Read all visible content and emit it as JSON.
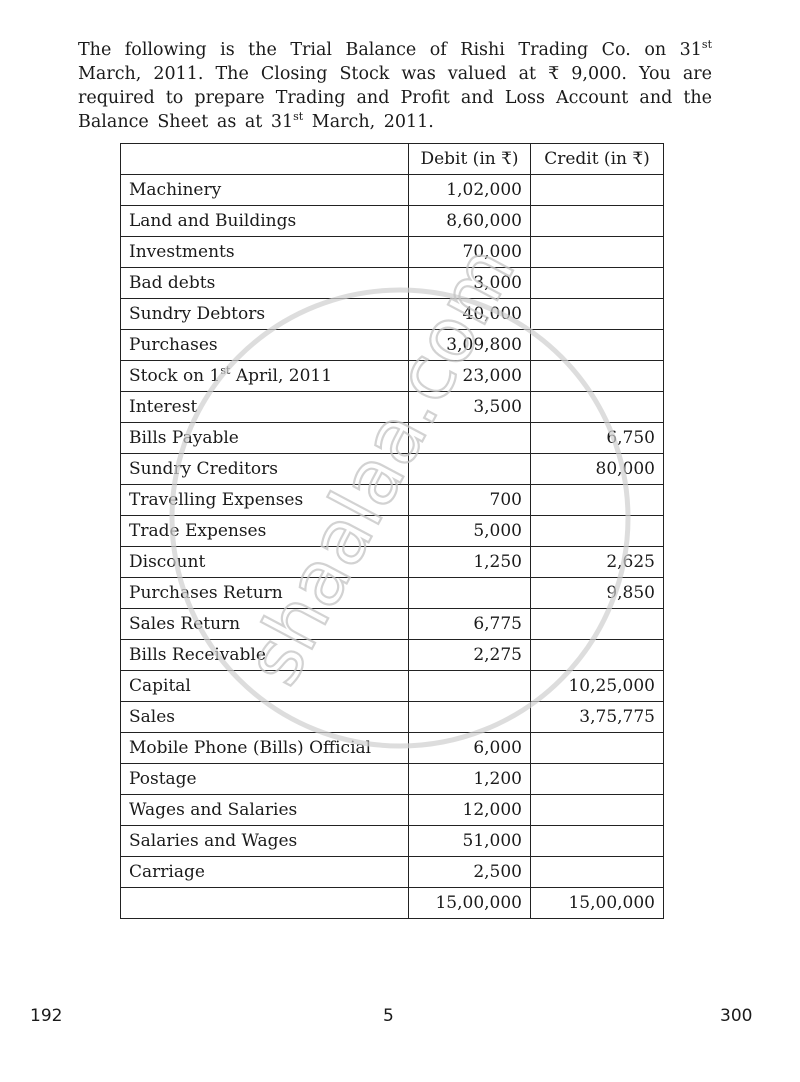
{
  "question": {
    "p1": "The following is the Trial Balance of Rishi Trading Co. on 31",
    "sup1": "st",
    "p2": " March, 2011. The Closing Stock was valued at ₹ 9,000. You are required to prepare Trading and Profit and Loss Account and the Balance Sheet as at 31",
    "sup2": "st",
    "p3": " March, 2011."
  },
  "table": {
    "headers": [
      "",
      "Debit (in ₹)",
      "Credit (in ₹)"
    ],
    "rows": [
      {
        "name": "Machinery",
        "debit": "1,02,000",
        "credit": ""
      },
      {
        "name": "Land and Buildings",
        "debit": "8,60,000",
        "credit": ""
      },
      {
        "name": "Investments",
        "debit": "70,000",
        "credit": ""
      },
      {
        "name": "Bad debts",
        "debit": "3,000",
        "credit": ""
      },
      {
        "name": "Sundry Debtors",
        "debit": "40,000",
        "credit": ""
      },
      {
        "name": "Purchases",
        "debit": "3,09,800",
        "credit": ""
      },
      {
        "name": "Stock on 1",
        "sup": "st",
        "name_rest": " April, 2011",
        "debit": "23,000",
        "credit": ""
      },
      {
        "name": "Interest",
        "debit": "3,500",
        "credit": ""
      },
      {
        "name": "Bills Payable",
        "debit": "",
        "credit": "6,750"
      },
      {
        "name": "Sundry Creditors",
        "debit": "",
        "credit": "80,000"
      },
      {
        "name": "Travelling Expenses",
        "debit": "700",
        "credit": ""
      },
      {
        "name": "Trade Expenses",
        "debit": "5,000",
        "credit": ""
      },
      {
        "name": "Discount",
        "debit": "1,250",
        "credit": "2,625"
      },
      {
        "name": "Purchases Return",
        "debit": "",
        "credit": "9,850"
      },
      {
        "name": "Sales Return",
        "debit": "6,775",
        "credit": ""
      },
      {
        "name": "Bills Receivable",
        "debit": "2,275",
        "credit": ""
      },
      {
        "name": "Capital",
        "debit": "",
        "credit": "10,25,000"
      },
      {
        "name": "Sales",
        "debit": "",
        "credit": "3,75,775"
      },
      {
        "name": "Mobile Phone (Bills) Official",
        "debit": "6,000",
        "credit": ""
      },
      {
        "name": "Postage",
        "debit": "1,200",
        "credit": ""
      },
      {
        "name": "Wages and Salaries",
        "debit": "12,000",
        "credit": ""
      },
      {
        "name": "Salaries and Wages",
        "debit": "51,000",
        "credit": ""
      },
      {
        "name": "Carriage",
        "debit": "2,500",
        "credit": ""
      }
    ],
    "total": {
      "name": "",
      "debit": "15,00,000",
      "credit": "15,00,000"
    }
  },
  "footer": {
    "left": "192",
    "center": "5",
    "right": "300"
  },
  "watermark": {
    "text": "shaalaa.com",
    "color": "#c8c8c8"
  }
}
